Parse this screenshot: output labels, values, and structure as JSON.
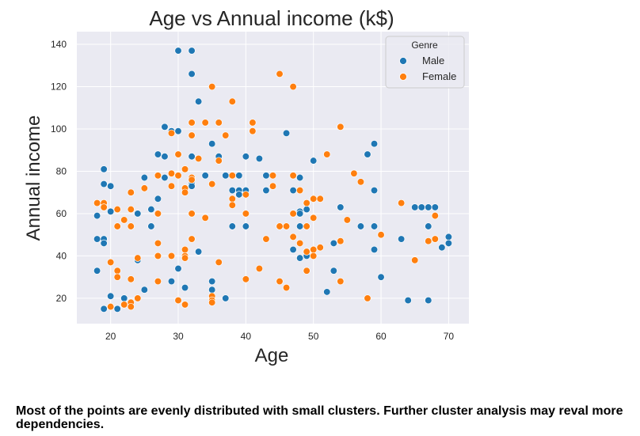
{
  "chart_data": {
    "type": "scatter",
    "title": "Age vs Annual income (k$)",
    "xlabel": "Age",
    "ylabel": "Annual income",
    "xlim": [
      15,
      73
    ],
    "ylim": [
      8,
      146
    ],
    "xticks": [
      20,
      30,
      40,
      50,
      60,
      70
    ],
    "yticks": [
      20,
      40,
      60,
      80,
      100,
      120,
      140
    ],
    "grid": true,
    "legend": {
      "title": "Genre",
      "placement": "top-right"
    },
    "series": [
      {
        "name": "Male",
        "color": "#1f77b4",
        "points": [
          [
            18,
            59
          ],
          [
            18,
            48
          ],
          [
            18,
            33
          ],
          [
            19,
            81
          ],
          [
            19,
            74
          ],
          [
            19,
            64
          ],
          [
            19,
            63
          ],
          [
            19,
            48
          ],
          [
            19,
            46
          ],
          [
            19,
            15
          ],
          [
            20,
            73
          ],
          [
            20,
            61
          ],
          [
            20,
            21
          ],
          [
            21,
            15
          ],
          [
            22,
            20
          ],
          [
            24,
            60
          ],
          [
            24,
            38
          ],
          [
            25,
            77
          ],
          [
            25,
            24
          ],
          [
            26,
            62
          ],
          [
            26,
            54
          ],
          [
            27,
            88
          ],
          [
            27,
            67
          ],
          [
            28,
            101
          ],
          [
            28,
            87
          ],
          [
            28,
            77
          ],
          [
            29,
            99
          ],
          [
            29,
            28
          ],
          [
            30,
            137
          ],
          [
            30,
            99
          ],
          [
            30,
            34
          ],
          [
            31,
            25
          ],
          [
            32,
            137
          ],
          [
            32,
            126
          ],
          [
            32,
            87
          ],
          [
            32,
            74
          ],
          [
            32,
            73
          ],
          [
            33,
            113
          ],
          [
            33,
            42
          ],
          [
            34,
            78
          ],
          [
            35,
            93
          ],
          [
            35,
            28
          ],
          [
            35,
            24
          ],
          [
            36,
            87
          ],
          [
            37,
            78
          ],
          [
            37,
            20
          ],
          [
            38,
            71
          ],
          [
            38,
            54
          ],
          [
            39,
            78
          ],
          [
            39,
            71
          ],
          [
            39,
            69
          ],
          [
            40,
            87
          ],
          [
            40,
            71
          ],
          [
            40,
            54
          ],
          [
            42,
            86
          ],
          [
            43,
            78
          ],
          [
            43,
            71
          ],
          [
            46,
            98
          ],
          [
            47,
            71
          ],
          [
            47,
            43
          ],
          [
            48,
            77
          ],
          [
            48,
            61
          ],
          [
            48,
            60
          ],
          [
            48,
            54
          ],
          [
            48,
            39
          ],
          [
            49,
            62
          ],
          [
            49,
            40
          ],
          [
            50,
            85
          ],
          [
            52,
            23
          ],
          [
            53,
            46
          ],
          [
            53,
            33
          ],
          [
            54,
            63
          ],
          [
            57,
            54
          ],
          [
            58,
            88
          ],
          [
            59,
            93
          ],
          [
            59,
            71
          ],
          [
            59,
            54
          ],
          [
            59,
            43
          ],
          [
            60,
            30
          ],
          [
            63,
            48
          ],
          [
            64,
            19
          ],
          [
            65,
            63
          ],
          [
            66,
            63
          ],
          [
            67,
            63
          ],
          [
            67,
            54
          ],
          [
            67,
            19
          ],
          [
            68,
            63
          ],
          [
            68,
            48
          ],
          [
            69,
            44
          ],
          [
            70,
            49
          ],
          [
            70,
            46
          ]
        ]
      },
      {
        "name": "Female",
        "color": "#ff7f0e",
        "points": [
          [
            18,
            65
          ],
          [
            19,
            65
          ],
          [
            19,
            63
          ],
          [
            20,
            37
          ],
          [
            20,
            16
          ],
          [
            21,
            62
          ],
          [
            21,
            54
          ],
          [
            21,
            33
          ],
          [
            21,
            30
          ],
          [
            22,
            57
          ],
          [
            22,
            17
          ],
          [
            23,
            70
          ],
          [
            23,
            62
          ],
          [
            23,
            54
          ],
          [
            23,
            29
          ],
          [
            23,
            18
          ],
          [
            23,
            16
          ],
          [
            24,
            39
          ],
          [
            24,
            20
          ],
          [
            25,
            72
          ],
          [
            27,
            78
          ],
          [
            27,
            60
          ],
          [
            27,
            46
          ],
          [
            27,
            40
          ],
          [
            27,
            28
          ],
          [
            29,
            98
          ],
          [
            29,
            79
          ],
          [
            29,
            73
          ],
          [
            29,
            40
          ],
          [
            30,
            88
          ],
          [
            30,
            78
          ],
          [
            30,
            19
          ],
          [
            31,
            81
          ],
          [
            31,
            72
          ],
          [
            31,
            70
          ],
          [
            31,
            43
          ],
          [
            31,
            40
          ],
          [
            31,
            39
          ],
          [
            31,
            17
          ],
          [
            32,
            103
          ],
          [
            32,
            97
          ],
          [
            32,
            77
          ],
          [
            32,
            76
          ],
          [
            32,
            60
          ],
          [
            32,
            48
          ],
          [
            33,
            86
          ],
          [
            34,
            103
          ],
          [
            34,
            58
          ],
          [
            35,
            120
          ],
          [
            35,
            74
          ],
          [
            35,
            21
          ],
          [
            35,
            19
          ],
          [
            35,
            18
          ],
          [
            36,
            103
          ],
          [
            36,
            85
          ],
          [
            36,
            37
          ],
          [
            37,
            97
          ],
          [
            38,
            113
          ],
          [
            38,
            78
          ],
          [
            38,
            67
          ],
          [
            38,
            64
          ],
          [
            40,
            69
          ],
          [
            40,
            60
          ],
          [
            40,
            29
          ],
          [
            41,
            103
          ],
          [
            41,
            99
          ],
          [
            42,
            34
          ],
          [
            43,
            48
          ],
          [
            44,
            78
          ],
          [
            44,
            73
          ],
          [
            45,
            126
          ],
          [
            45,
            54
          ],
          [
            45,
            28
          ],
          [
            46,
            54
          ],
          [
            46,
            25
          ],
          [
            47,
            120
          ],
          [
            47,
            78
          ],
          [
            47,
            60
          ],
          [
            47,
            49
          ],
          [
            48,
            71
          ],
          [
            48,
            46
          ],
          [
            49,
            65
          ],
          [
            49,
            54
          ],
          [
            49,
            42
          ],
          [
            49,
            33
          ],
          [
            50,
            67
          ],
          [
            50,
            58
          ],
          [
            50,
            43
          ],
          [
            50,
            40
          ],
          [
            51,
            67
          ],
          [
            51,
            44
          ],
          [
            52,
            88
          ],
          [
            54,
            101
          ],
          [
            54,
            47
          ],
          [
            54,
            28
          ],
          [
            55,
            57
          ],
          [
            56,
            79
          ],
          [
            57,
            75
          ],
          [
            58,
            20
          ],
          [
            60,
            50
          ],
          [
            63,
            65
          ],
          [
            65,
            38
          ],
          [
            67,
            47
          ],
          [
            68,
            59
          ],
          [
            68,
            48
          ]
        ]
      }
    ]
  },
  "caption": "Most of the points are evenly distributed with small clusters. Further cluster analysis may reval more dependencies."
}
